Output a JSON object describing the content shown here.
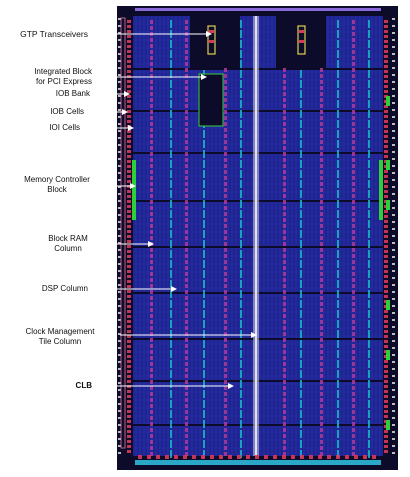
{
  "labels": {
    "gtp_transceivers": "GTP Transceivers",
    "pci_express_line1": "Integrated Block",
    "pci_express_line2": "for PCI Express",
    "iob_bank": "IOB Bank",
    "iob_cells": "IOB Cells",
    "ioi_cells": "IOI Cells",
    "memory_controller_line1": "Memory Controller",
    "memory_controller_line2": "Block",
    "block_ram_line1": "Block RAM",
    "block_ram_line2": "Column",
    "dsp_column": "DSP Column",
    "clock_mgmt_line1": "Clock Management",
    "clock_mgmt_line2": "Tile Column",
    "clb": "CLB"
  },
  "colors": {
    "die_background": "#0c0c2a",
    "clb_fabric": "#1f2490",
    "fabric_grid": "#3a46d6",
    "block_ram_column": "#b2389a",
    "dsp_column": "#18b8c8",
    "io_column": "#d8385a",
    "iob_pads": "#e6e6e6",
    "clock_spine": "#d0d0e8",
    "memory_controller": "#2bd03a",
    "pci_express_outline": "#3ad13a",
    "gtp_block": "#e0d050",
    "bottom_pads": "#2aa8c8",
    "outline_box": "#e07aa0",
    "leader_line": "#ffffff"
  }
}
